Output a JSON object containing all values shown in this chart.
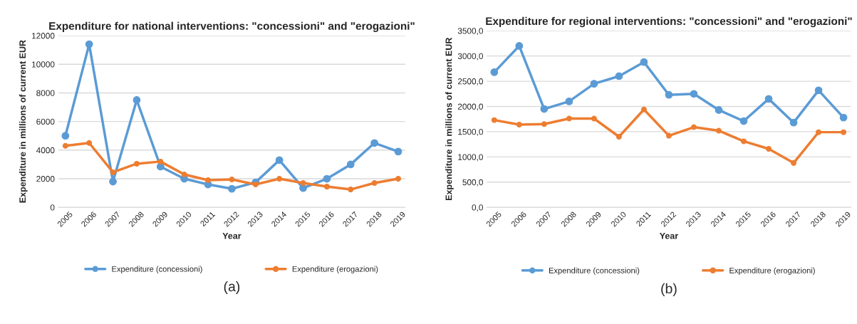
{
  "chart_data": [
    {
      "type": "line",
      "title": "Expenditure for national interventions: \"concessioni\" and \"erogazioni\"",
      "xlabel": "Year",
      "ylabel": "Expenditure in millions of current EUR",
      "categories": [
        "2005",
        "2006",
        "2007",
        "2008",
        "2009",
        "2010",
        "2011",
        "2012",
        "2013",
        "2014",
        "2015",
        "2016",
        "2017",
        "2018",
        "2019"
      ],
      "series": [
        {
          "name": "Expenditure (concessioni)",
          "color": "#5b9bd5",
          "values": [
            5000,
            11400,
            1800,
            7500,
            2850,
            2000,
            1600,
            1300,
            1750,
            3300,
            1350,
            2000,
            3000,
            4500,
            3900
          ]
        },
        {
          "name": "Expenditure (erogazioni)",
          "color": "#ed7d31",
          "values": [
            4300,
            4500,
            2450,
            3050,
            3200,
            2300,
            1900,
            1950,
            1600,
            2000,
            1700,
            1450,
            1250,
            1700,
            2000
          ]
        }
      ],
      "ylim": [
        0,
        12000
      ],
      "yticks": [
        0,
        2000,
        4000,
        6000,
        8000,
        10000,
        12000
      ],
      "grid": "y",
      "legend": "bottom",
      "marker": "circle",
      "line_style": "solid",
      "annotations": [
        "(a)"
      ]
    },
    {
      "type": "line",
      "title": "Expenditure for regional interventions: \"concessioni\" and \"erogazioni\"",
      "xlabel": "Year",
      "ylabel": "Expenditure in millions of current EUR",
      "categories": [
        "2005",
        "2006",
        "2007",
        "2008",
        "2009",
        "2010",
        "2011",
        "2012",
        "2013",
        "2014",
        "2015",
        "2016",
        "2017",
        "2018",
        "2019"
      ],
      "series": [
        {
          "name": "Expenditure (concessioni)",
          "color": "#5b9bd5",
          "values": [
            2680,
            3200,
            1950,
            2100,
            2450,
            2600,
            2880,
            2230,
            2250,
            1930,
            1710,
            2150,
            1680,
            2320,
            1780
          ]
        },
        {
          "name": "Expenditure (erogazioni)",
          "color": "#ed7d31",
          "values": [
            1730,
            1640,
            1650,
            1760,
            1760,
            1400,
            1940,
            1420,
            1590,
            1520,
            1310,
            1160,
            880,
            1490,
            1490
          ]
        }
      ],
      "ylim": [
        0,
        3500
      ],
      "yticks": [
        {
          "value": 0,
          "label": "0,0"
        },
        {
          "value": 500,
          "label": "500,0"
        },
        {
          "value": 1000,
          "label": "1000,0"
        },
        {
          "value": 1500,
          "label": "1500,0"
        },
        {
          "value": 2000,
          "label": "2000,0"
        },
        {
          "value": 2500,
          "label": "2500,0"
        },
        {
          "value": 3000,
          "label": "3000,0"
        },
        {
          "value": 3500,
          "label": "3500,0"
        }
      ],
      "grid": "y",
      "legend": "bottom",
      "marker": "circle",
      "line_style": "solid",
      "annotations": [
        "(b)"
      ]
    }
  ]
}
